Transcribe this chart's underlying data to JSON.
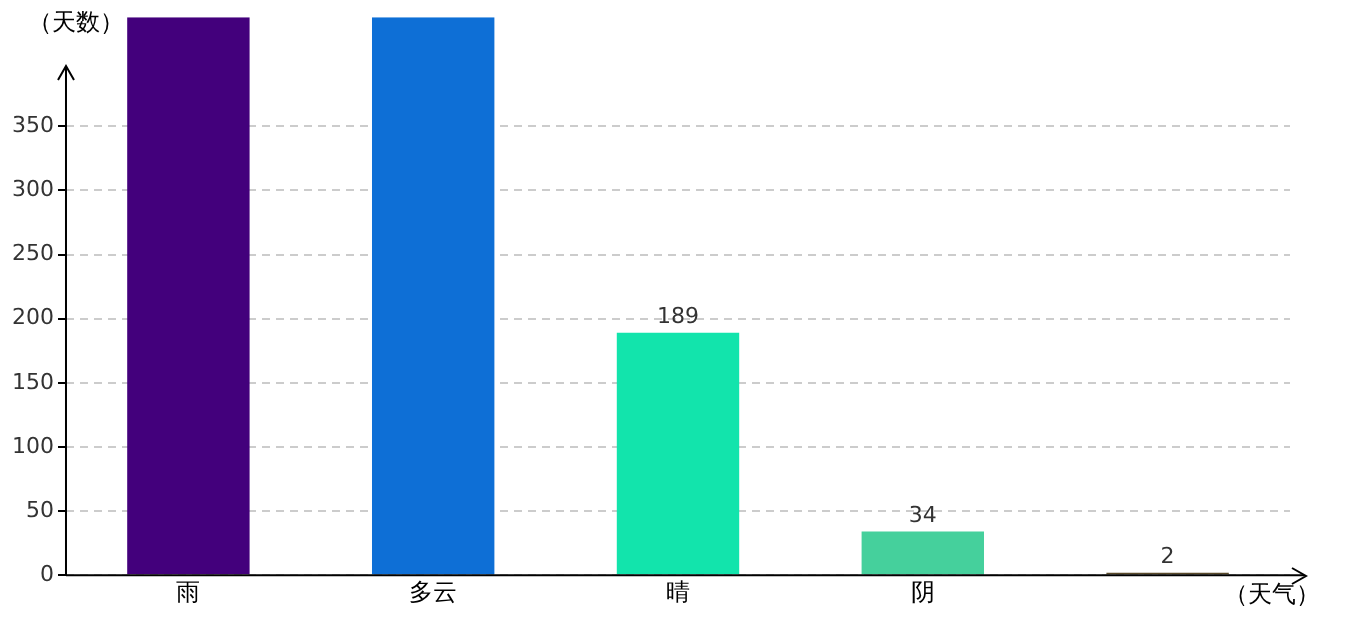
{
  "chart_data": {
    "type": "bar",
    "ylabel": "（天数）",
    "xlabel": "（天气）",
    "categories": [
      "雨",
      "多云",
      "晴",
      "阴",
      null
    ],
    "values": [
      435,
      435,
      189,
      34,
      2
    ],
    "colors": [
      "#43007c",
      "#0e6fd6",
      "#12e4ac",
      "#45d09c",
      "#5a4a2a"
    ],
    "value_labels": [
      null,
      null,
      "189",
      "34",
      "2"
    ],
    "ylim": [
      0,
      435
    ],
    "yticks": [
      0,
      50,
      100,
      150,
      200,
      250,
      300,
      350
    ],
    "grid": "y",
    "legend": false
  }
}
